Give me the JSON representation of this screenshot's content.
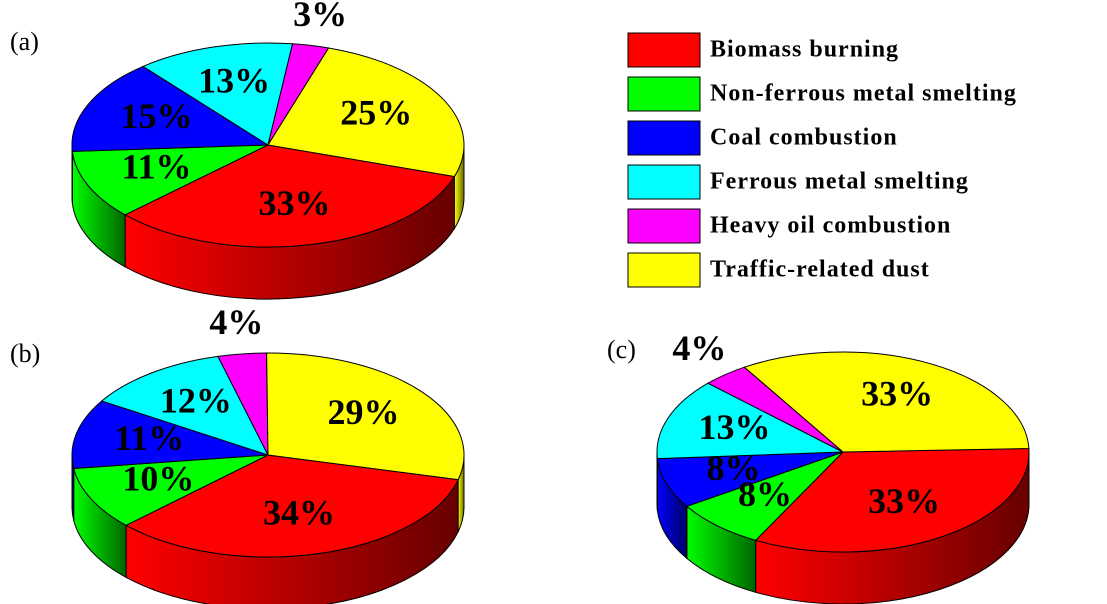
{
  "chart_data": {
    "type": "pie",
    "categories": [
      "Biomass burning",
      "Non-ferrous metal smelting",
      "Coal combustion",
      "Ferrous metal smelting",
      "Heavy oil combustion",
      "Traffic-related dust"
    ],
    "colors": [
      "#ff0000",
      "#00ff00",
      "#0000ff",
      "#00ffff",
      "#ff00ff",
      "#ffff00"
    ],
    "series": [
      {
        "name": "(a)",
        "values": [
          33,
          11,
          15,
          13,
          3,
          25
        ],
        "value_labels": [
          "33%",
          "11%",
          "15%",
          "13%",
          "3%",
          "25%"
        ]
      },
      {
        "name": "(b)",
        "values": [
          34,
          10,
          11,
          12,
          4,
          29
        ],
        "value_labels": [
          "34%",
          "10%",
          "11%",
          "12%",
          "4%",
          "29%"
        ]
      },
      {
        "name": "(c)",
        "values": [
          33,
          8,
          8,
          13,
          4,
          33
        ],
        "value_labels": [
          "33%",
          "8%",
          "8%",
          "13%",
          "4%",
          "33%"
        ]
      }
    ]
  }
}
